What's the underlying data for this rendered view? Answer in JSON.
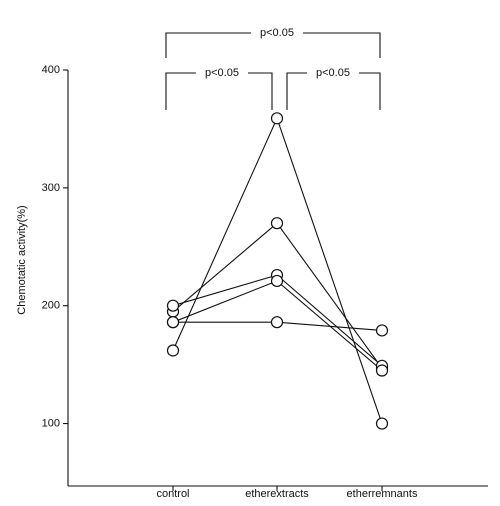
{
  "chart_data": {
    "type": "line",
    "y_label": "Chemotatic activity(%)",
    "categories": [
      "control",
      "etherextracts",
      "etherremnants"
    ],
    "series": [
      {
        "color": "#111111",
        "values": [
          162,
          359,
          100
        ]
      },
      {
        "color": "#111111",
        "values": [
          195,
          270,
          147
        ]
      },
      {
        "color": "#111111",
        "values": [
          200,
          226,
          149
        ]
      },
      {
        "color": "#111111",
        "values": [
          186,
          221,
          145
        ]
      },
      {
        "color": "#111111",
        "values": [
          186,
          186,
          179
        ]
      }
    ],
    "ylim": [
      47,
      400
    ],
    "yticks": [
      100,
      200,
      300,
      400
    ],
    "annotations": [
      "p<0.05",
      "p<0.05",
      "p<0.05"
    ]
  }
}
